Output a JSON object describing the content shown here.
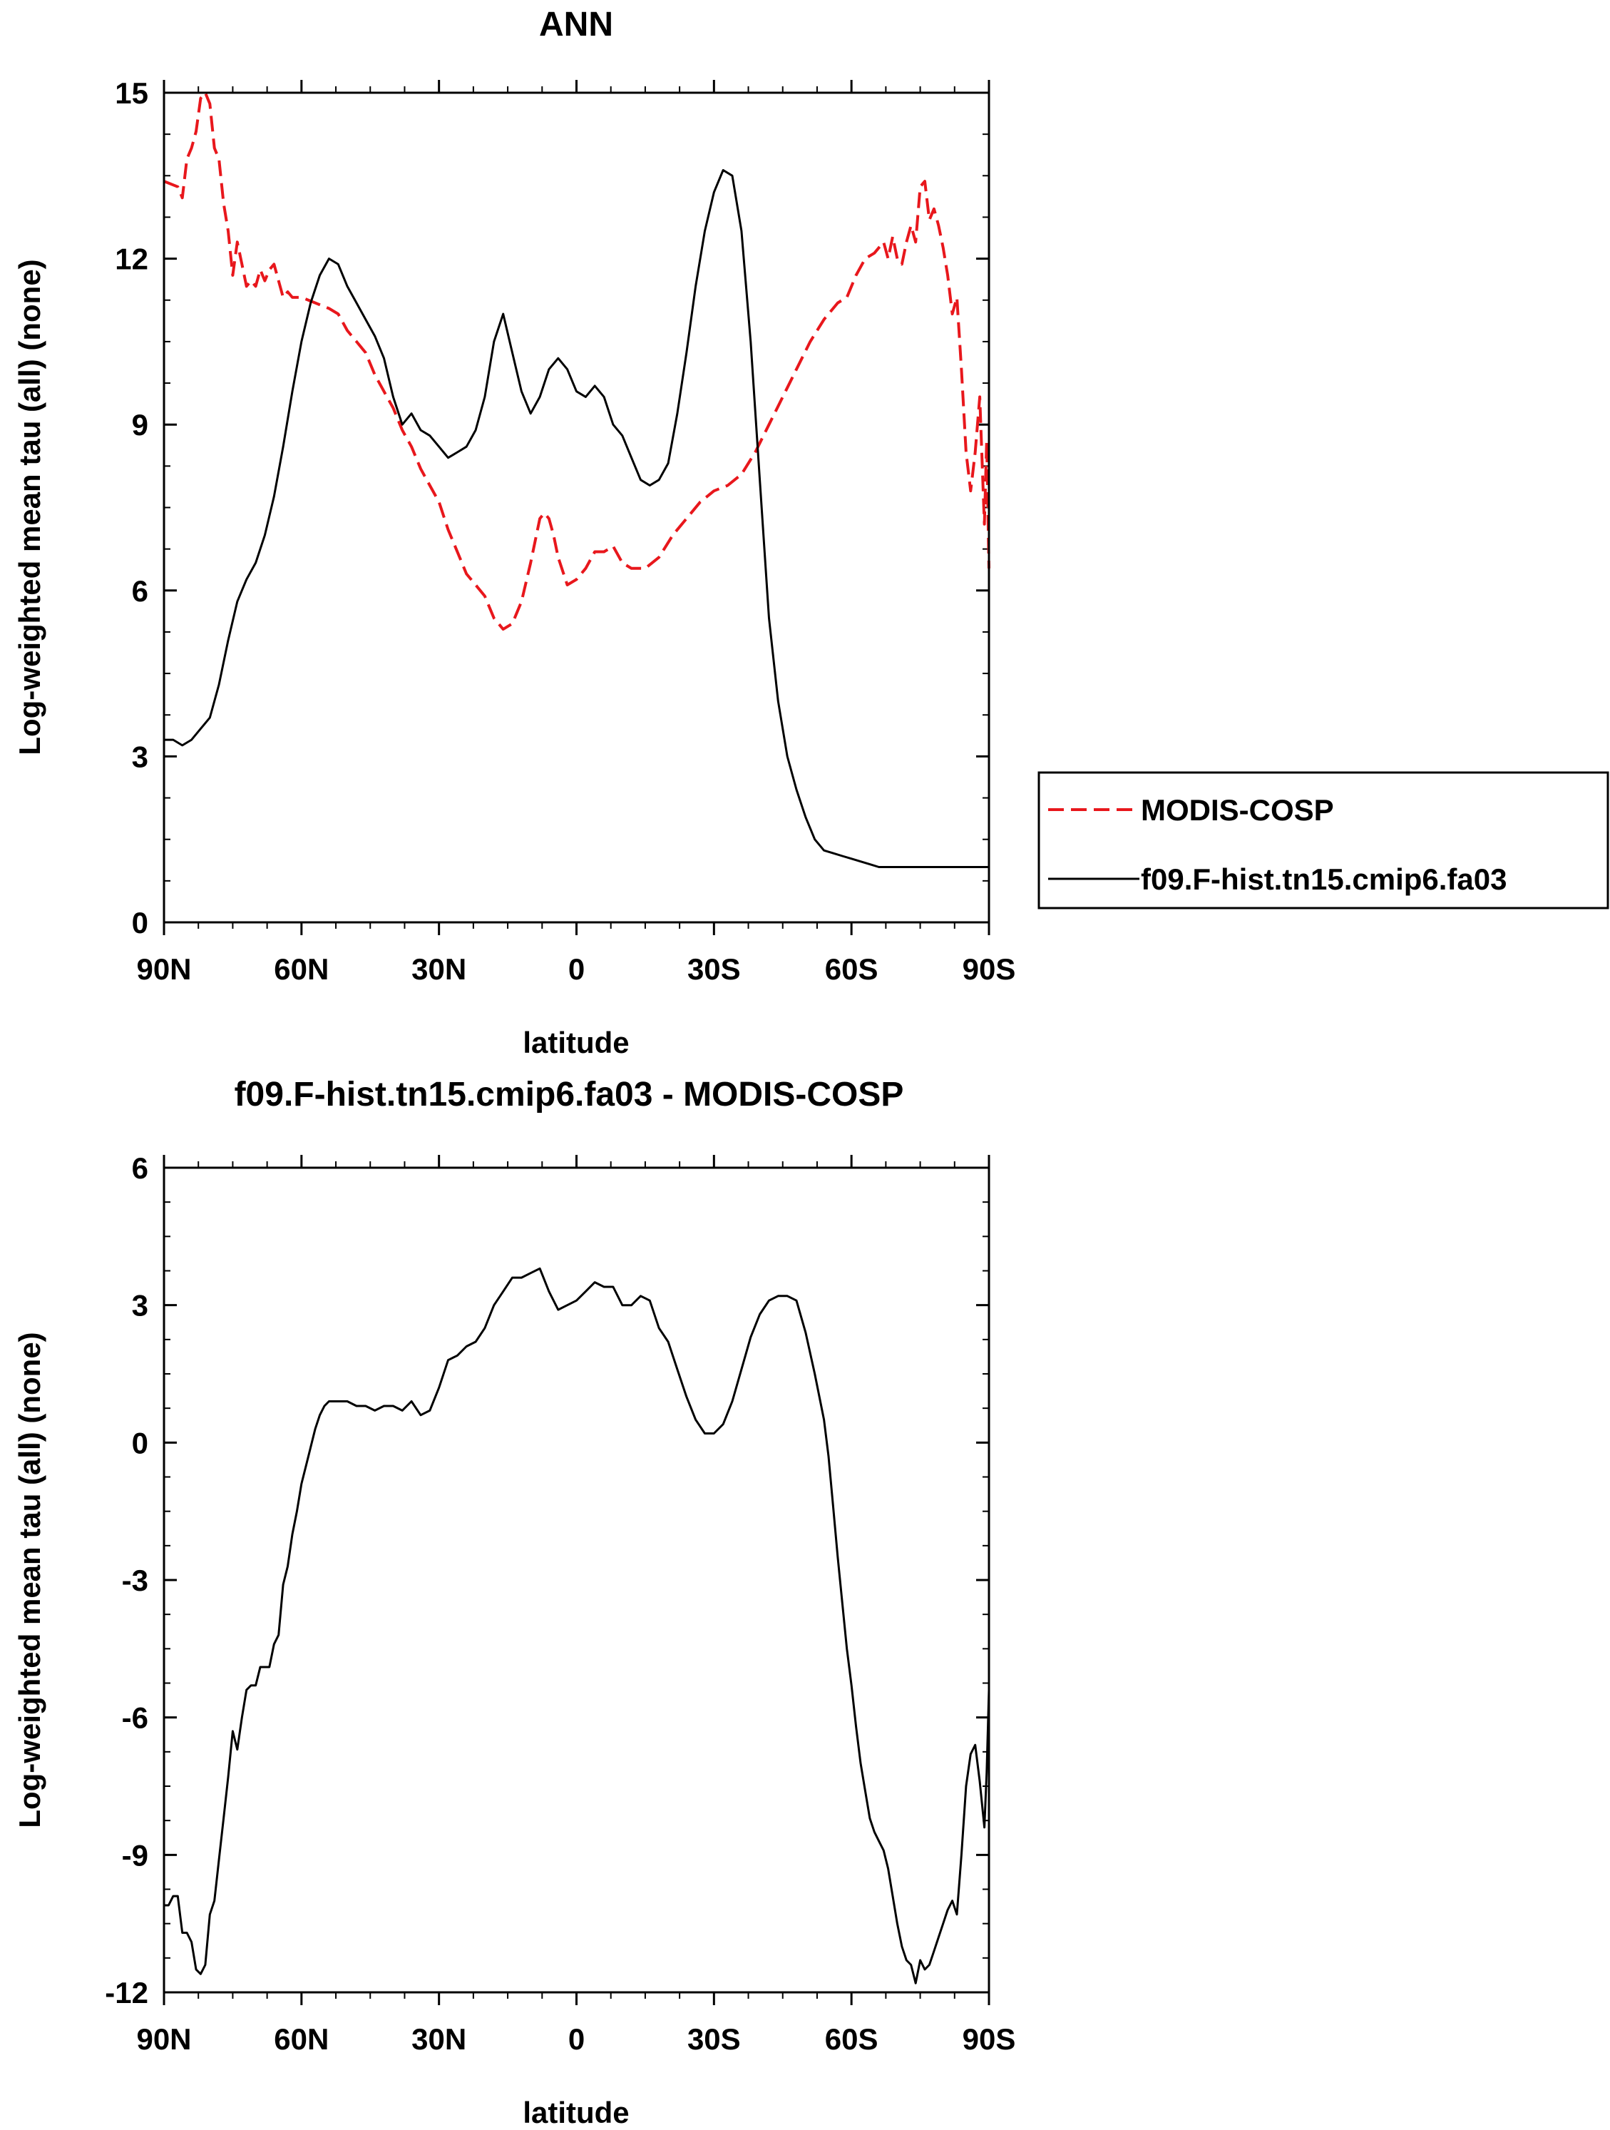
{
  "chart_data": [
    {
      "type": "line",
      "title": "ANN",
      "xlabel": "latitude",
      "ylabel": "Log-weighted mean tau (all) (none)",
      "xlim": [
        -90,
        90
      ],
      "ylim": [
        0,
        15
      ],
      "x_direction": "north-to-south",
      "xtick_values": [
        -90,
        -60,
        -30,
        0,
        30,
        60,
        90
      ],
      "xtick_labels": [
        "90N",
        "60N",
        "30N",
        "0",
        "30S",
        "60S",
        "90S"
      ],
      "ytick_values": [
        0,
        3,
        6,
        9,
        12,
        15
      ],
      "ytick_labels": [
        "0",
        "3",
        "6",
        "9",
        "12",
        "15"
      ],
      "legend_position": "right",
      "series": [
        {
          "name": "MODIS-COSP",
          "color": "#e8171c",
          "dash": "dashed",
          "x": [
            -90,
            -87,
            -86,
            -85,
            -84,
            -83,
            -82,
            -81,
            -80,
            -79,
            -78,
            -77,
            -76,
            -75,
            -74,
            -73,
            -72,
            -71,
            -70,
            -69,
            -68,
            -67,
            -66,
            -65,
            -64,
            -63,
            -62,
            -60,
            -57,
            -54,
            -52,
            -50,
            -48,
            -46,
            -44,
            -42,
            -40,
            -38,
            -36,
            -34,
            -32,
            -30,
            -28,
            -26,
            -24,
            -22,
            -20,
            -18,
            -16,
            -14,
            -12,
            -10,
            -8,
            -7,
            -6,
            -5,
            -4,
            -2,
            0,
            2,
            4,
            6,
            8,
            10,
            12,
            15,
            18,
            21,
            24,
            27,
            30,
            33,
            36,
            39,
            42,
            45,
            48,
            51,
            54,
            57,
            59,
            61,
            63,
            65,
            67,
            68,
            69,
            70,
            71,
            72,
            73,
            74,
            75,
            76,
            77,
            78,
            79,
            80,
            81,
            82,
            83,
            84,
            85,
            86,
            87,
            88,
            89,
            89.5,
            90
          ],
          "y": [
            13.4,
            13.3,
            13.1,
            13.8,
            14.0,
            14.3,
            14.9,
            15.0,
            14.8,
            14.0,
            13.8,
            13.0,
            12.5,
            11.7,
            12.3,
            11.9,
            11.5,
            11.6,
            11.5,
            11.8,
            11.6,
            11.8,
            11.9,
            11.6,
            11.3,
            11.4,
            11.3,
            11.3,
            11.2,
            11.1,
            11.0,
            10.7,
            10.5,
            10.3,
            9.9,
            9.6,
            9.3,
            8.9,
            8.6,
            8.2,
            7.9,
            7.6,
            7.1,
            6.7,
            6.3,
            6.1,
            5.9,
            5.5,
            5.3,
            5.4,
            5.8,
            6.5,
            7.3,
            7.4,
            7.3,
            7.0,
            6.6,
            6.1,
            6.2,
            6.4,
            6.7,
            6.7,
            6.8,
            6.5,
            6.4,
            6.4,
            6.6,
            7.0,
            7.3,
            7.6,
            7.8,
            7.9,
            8.1,
            8.5,
            9.0,
            9.5,
            10.0,
            10.5,
            10.9,
            11.2,
            11.3,
            11.7,
            12.0,
            12.1,
            12.3,
            12.0,
            12.4,
            12.0,
            11.9,
            12.3,
            12.6,
            12.3,
            13.3,
            13.4,
            12.7,
            12.9,
            12.6,
            12.2,
            11.7,
            11.0,
            11.3,
            10.0,
            8.5,
            7.8,
            8.5,
            9.5,
            7.2,
            8.7,
            6.4
          ]
        },
        {
          "name": "f09.F-hist.tn15.cmip6.fa03",
          "color": "#000000",
          "dash": "solid",
          "x": [
            -90,
            -88,
            -86,
            -84,
            -82,
            -80,
            -78,
            -76,
            -74,
            -72,
            -70,
            -68,
            -66,
            -64,
            -62,
            -60,
            -58,
            -56,
            -54,
            -52,
            -50,
            -48,
            -46,
            -44,
            -42,
            -40,
            -38,
            -36,
            -34,
            -32,
            -30,
            -28,
            -26,
            -24,
            -22,
            -20,
            -18,
            -16,
            -14,
            -12,
            -10,
            -8,
            -6,
            -4,
            -2,
            0,
            2,
            4,
            6,
            8,
            10,
            12,
            14,
            16,
            18,
            20,
            22,
            24,
            26,
            28,
            30,
            32,
            34,
            36,
            38,
            40,
            42,
            44,
            46,
            48,
            50,
            52,
            54,
            56,
            58,
            60,
            62,
            64,
            66,
            68,
            70,
            72,
            74,
            76,
            78,
            80,
            82,
            84,
            86,
            88,
            90
          ],
          "y": [
            3.3,
            3.3,
            3.2,
            3.3,
            3.5,
            3.7,
            4.3,
            5.1,
            5.8,
            6.2,
            6.5,
            7.0,
            7.7,
            8.6,
            9.6,
            10.5,
            11.2,
            11.7,
            12.0,
            11.9,
            11.5,
            11.2,
            10.9,
            10.6,
            10.2,
            9.5,
            9.0,
            9.2,
            8.9,
            8.8,
            8.6,
            8.4,
            8.5,
            8.6,
            8.9,
            9.5,
            10.5,
            11.0,
            10.3,
            9.6,
            9.2,
            9.5,
            10.0,
            10.2,
            10.0,
            9.6,
            9.5,
            9.7,
            9.5,
            9.0,
            8.8,
            8.4,
            8.0,
            7.9,
            8.0,
            8.3,
            9.2,
            10.3,
            11.5,
            12.5,
            13.2,
            13.6,
            13.5,
            12.5,
            10.5,
            8.0,
            5.5,
            4.0,
            3.0,
            2.4,
            1.9,
            1.5,
            1.3,
            1.25,
            1.2,
            1.15,
            1.1,
            1.05,
            1.0,
            1.0,
            1.0,
            1.0,
            1.0,
            1.0,
            1.0,
            1.0,
            1.0,
            1.0,
            1.0,
            1.0,
            1.0
          ]
        }
      ]
    },
    {
      "type": "line",
      "title": "f09.F-hist.tn15.cmip6.fa03 - MODIS-COSP",
      "xlabel": "latitude",
      "ylabel": "Log-weighted mean tau (all) (none)",
      "xlim": [
        -90,
        90
      ],
      "ylim": [
        -12,
        6
      ],
      "x_direction": "north-to-south",
      "xtick_values": [
        -90,
        -60,
        -30,
        0,
        30,
        60,
        90
      ],
      "xtick_labels": [
        "90N",
        "60N",
        "30N",
        "0",
        "30S",
        "60S",
        "90S"
      ],
      "ytick_values": [
        -12,
        -9,
        -6,
        -3,
        0,
        3,
        6
      ],
      "ytick_labels": [
        "-12",
        "-9",
        "-6",
        "-3",
        "0",
        "3",
        "6"
      ],
      "series": [
        {
          "name": "",
          "color": "#000000",
          "dash": "solid",
          "x": [
            -90,
            -89,
            -88,
            -87,
            -86,
            -85,
            -84,
            -83,
            -82,
            -81,
            -80,
            -79,
            -78,
            -77,
            -76,
            -75,
            -74,
            -73,
            -72,
            -71,
            -70,
            -69,
            -68,
            -67,
            -66,
            -65,
            -64,
            -63,
            -62,
            -61,
            -60,
            -59,
            -58,
            -57,
            -56,
            -55,
            -54,
            -52,
            -50,
            -48,
            -46,
            -44,
            -42,
            -40,
            -38,
            -36,
            -34,
            -32,
            -30,
            -28,
            -26,
            -24,
            -22,
            -20,
            -18,
            -16,
            -14,
            -12,
            -10,
            -8,
            -6,
            -4,
            -2,
            0,
            2,
            4,
            6,
            8,
            10,
            12,
            14,
            16,
            18,
            20,
            22,
            24,
            26,
            28,
            30,
            32,
            34,
            36,
            38,
            40,
            42,
            44,
            46,
            48,
            50,
            52,
            54,
            55,
            56,
            57,
            58,
            59,
            60,
            61,
            62,
            63,
            64,
            65,
            66,
            67,
            68,
            69,
            70,
            71,
            72,
            73,
            74,
            75,
            76,
            77,
            78,
            79,
            80,
            81,
            82,
            83,
            84,
            85,
            86,
            87,
            88,
            89,
            89.5,
            90
          ],
          "y": [
            -10.1,
            -10.1,
            -9.9,
            -9.9,
            -10.7,
            -10.7,
            -10.9,
            -11.5,
            -11.6,
            -11.4,
            -10.3,
            -10.0,
            -9.1,
            -8.2,
            -7.3,
            -6.3,
            -6.7,
            -6.0,
            -5.4,
            -5.3,
            -5.3,
            -4.9,
            -4.9,
            -4.9,
            -4.4,
            -4.2,
            -3.1,
            -2.7,
            -2.0,
            -1.5,
            -0.9,
            -0.5,
            -0.1,
            0.3,
            0.6,
            0.8,
            0.9,
            0.9,
            0.9,
            0.8,
            0.8,
            0.7,
            0.8,
            0.8,
            0.7,
            0.9,
            0.6,
            0.7,
            1.2,
            1.8,
            1.9,
            2.1,
            2.2,
            2.5,
            3.0,
            3.3,
            3.6,
            3.6,
            3.7,
            3.8,
            3.3,
            2.9,
            3.0,
            3.1,
            3.3,
            3.5,
            3.4,
            3.4,
            3.0,
            3.0,
            3.2,
            3.1,
            2.5,
            2.2,
            1.6,
            1.0,
            0.5,
            0.2,
            0.2,
            0.4,
            0.9,
            1.6,
            2.3,
            2.8,
            3.1,
            3.2,
            3.2,
            3.1,
            2.4,
            1.5,
            0.5,
            -0.3,
            -1.4,
            -2.5,
            -3.5,
            -4.5,
            -5.3,
            -6.2,
            -7.0,
            -7.6,
            -8.2,
            -8.5,
            -8.7,
            -8.9,
            -9.3,
            -9.9,
            -10.5,
            -11.0,
            -11.3,
            -11.4,
            -11.8,
            -11.3,
            -11.5,
            -11.4,
            -11.1,
            -10.8,
            -10.5,
            -10.2,
            -10.0,
            -10.3,
            -9.0,
            -7.5,
            -6.8,
            -6.6,
            -7.4,
            -8.4,
            -7.2,
            -5.4
          ]
        }
      ]
    }
  ]
}
